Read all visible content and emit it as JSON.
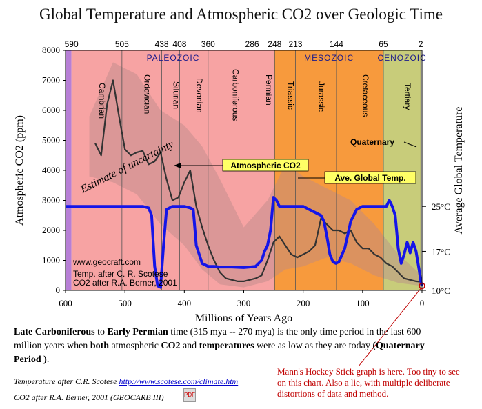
{
  "title": "Global Temperature and Atmospheric CO2 over Geologic Time",
  "chart_data": {
    "type": "line",
    "x_axis": {
      "label": "Millions of Years Ago",
      "range": [
        600,
        0
      ],
      "ticks": [
        600,
        500,
        400,
        300,
        200,
        100,
        0
      ]
    },
    "y_axis_left": {
      "label": "Atmospheric CO2 (ppm)",
      "range": [
        0,
        8000
      ],
      "ticks": [
        0,
        1000,
        2000,
        3000,
        4000,
        5000,
        6000,
        7000,
        8000
      ]
    },
    "y_axis_right": {
      "label": "Average Global Temperature",
      "ticks": [
        {
          "label": "10°C",
          "co2_equiv": 0
        },
        {
          "label": "17°C",
          "co2_equiv": 1300
        },
        {
          "label": "25°C",
          "co2_equiv": 2800
        }
      ]
    },
    "top_boundaries": [
      "590",
      "505",
      "438",
      "408",
      "360",
      "286",
      "248",
      "213",
      "144",
      "65",
      "2"
    ],
    "top_boundary_values": [
      590,
      505,
      438,
      408,
      360,
      286,
      248,
      213,
      144,
      65,
      2
    ],
    "eras": [
      {
        "name": "PALEOZOIC",
        "from": 590,
        "to": 248,
        "color": "#f7a3a3"
      },
      {
        "name": "MESOZOIC",
        "from": 248,
        "to": 65,
        "color": "#f79a3d"
      },
      {
        "name": "CENOZOIC",
        "from": 65,
        "to": 2,
        "color": "#c8cc7a"
      }
    ],
    "periods": [
      {
        "name": "Cambrian",
        "from": 590,
        "to": 505
      },
      {
        "name": "Ordovician",
        "from": 505,
        "to": 438
      },
      {
        "name": "Silurian",
        "from": 438,
        "to": 408
      },
      {
        "name": "Devonian",
        "from": 408,
        "to": 360
      },
      {
        "name": "Carboniferous",
        "from": 360,
        "to": 286
      },
      {
        "name": "Permian",
        "from": 286,
        "to": 248
      },
      {
        "name": "Triassic",
        "from": 248,
        "to": 213
      },
      {
        "name": "Jurassic",
        "from": 213,
        "to": 144
      },
      {
        "name": "Cretaceous",
        "from": 144,
        "to": 65
      },
      {
        "name": "Tertiary",
        "from": 65,
        "to": 2
      }
    ],
    "series": [
      {
        "name": "Atmospheric CO2",
        "color": "#333333",
        "x": [
          550,
          540,
          530,
          520,
          510,
          500,
          490,
          480,
          470,
          460,
          450,
          440,
          430,
          420,
          410,
          400,
          390,
          380,
          370,
          360,
          350,
          340,
          330,
          320,
          310,
          300,
          290,
          280,
          270,
          260,
          250,
          240,
          230,
          220,
          210,
          200,
          190,
          180,
          170,
          160,
          150,
          140,
          130,
          120,
          110,
          100,
          90,
          80,
          70,
          60,
          50,
          40,
          30,
          20,
          10,
          0
        ],
        "y": [
          4900,
          4500,
          6200,
          7000,
          5800,
          4700,
          4500,
          4600,
          4650,
          4200,
          4300,
          4600,
          3700,
          3000,
          3100,
          3600,
          4000,
          2800,
          2100,
          1500,
          1000,
          600,
          400,
          350,
          300,
          300,
          350,
          400,
          500,
          1000,
          1600,
          1800,
          1500,
          1200,
          1100,
          1200,
          1300,
          1500,
          2400,
          2200,
          2000,
          2000,
          1900,
          2000,
          1600,
          1400,
          1400,
          1200,
          1100,
          900,
          800,
          600,
          400,
          350,
          300,
          280
        ]
      },
      {
        "name": "Ave. Global Temp.",
        "color": "#1515e8",
        "x": [
          600,
          580,
          560,
          540,
          520,
          500,
          480,
          470,
          460,
          455,
          450,
          445,
          440,
          435,
          430,
          420,
          410,
          400,
          390,
          385,
          380,
          370,
          360,
          350,
          340,
          330,
          320,
          310,
          300,
          290,
          280,
          270,
          265,
          260,
          255,
          250,
          245,
          240,
          230,
          220,
          210,
          200,
          195,
          190,
          180,
          170,
          165,
          160,
          155,
          150,
          145,
          140,
          130,
          120,
          110,
          100,
          90,
          80,
          70,
          60,
          55,
          50,
          45,
          40,
          35,
          30,
          25,
          20,
          15,
          10,
          5,
          2,
          0
        ],
        "y": [
          2800,
          2800,
          2800,
          2800,
          2800,
          2800,
          2800,
          2800,
          2750,
          2500,
          800,
          150,
          100,
          1500,
          2700,
          2800,
          2800,
          2800,
          2750,
          2700,
          1500,
          900,
          800,
          800,
          780,
          780,
          780,
          770,
          760,
          780,
          800,
          1000,
          1300,
          1500,
          2000,
          3100,
          3000,
          2800,
          2800,
          2800,
          2800,
          2800,
          2750,
          2700,
          2600,
          2500,
          2300,
          1800,
          1200,
          950,
          900,
          950,
          1400,
          2300,
          2700,
          2800,
          2800,
          2800,
          2800,
          2800,
          3000,
          2800,
          2500,
          1400,
          900,
          1200,
          1600,
          1250,
          1600,
          1300,
          700,
          300,
          150
        ]
      }
    ],
    "annotations": {
      "co2_label": "Atmospheric CO2",
      "temp_label": "Ave. Global Temp.",
      "uncertainty": "Estimate of uncertainty",
      "quaternary": "Quaternary",
      "site": "www.geocraft.com",
      "credit1": "Temp. after C. R. Scotese",
      "credit2": "CO2 after R.A. Berner, 2001"
    },
    "colors": {
      "co2": "#333333",
      "temp": "#1515e8",
      "uncertainty": "#b98a8a",
      "paleozoic": "#f7a3a3",
      "mesozoic": "#f79a3d",
      "cenozoic": "#c8cc7a",
      "label_box": "#ffff66"
    }
  },
  "caption": {
    "p1": "Late Carboniferous",
    "p2": " to ",
    "p3": "Early Permian",
    "p4": " time (315 mya -- 270 mya) is the only time period in the last 600 million years when ",
    "p5": "both",
    "p6": " atmospheric ",
    "p7": "CO2",
    "p8": " and ",
    "p9": "temperatures",
    "p10": " were as low as they are today ",
    "p11": "(Quaternary Period )",
    "p12": "."
  },
  "credits": {
    "line1_text": "Temperature after C.R. Scotese ",
    "line1_url": "http://www.scotese.com/climate.htm",
    "line2": "CO2 after R.A. Berner, 2001 (GEOCARB III)",
    "pdf_label": "PDF"
  },
  "mann_note": "Mann's Hockey Stick graph is here. Too tiny to see on this chart. Also a lie, with multiple deliberate distortions of data and method."
}
